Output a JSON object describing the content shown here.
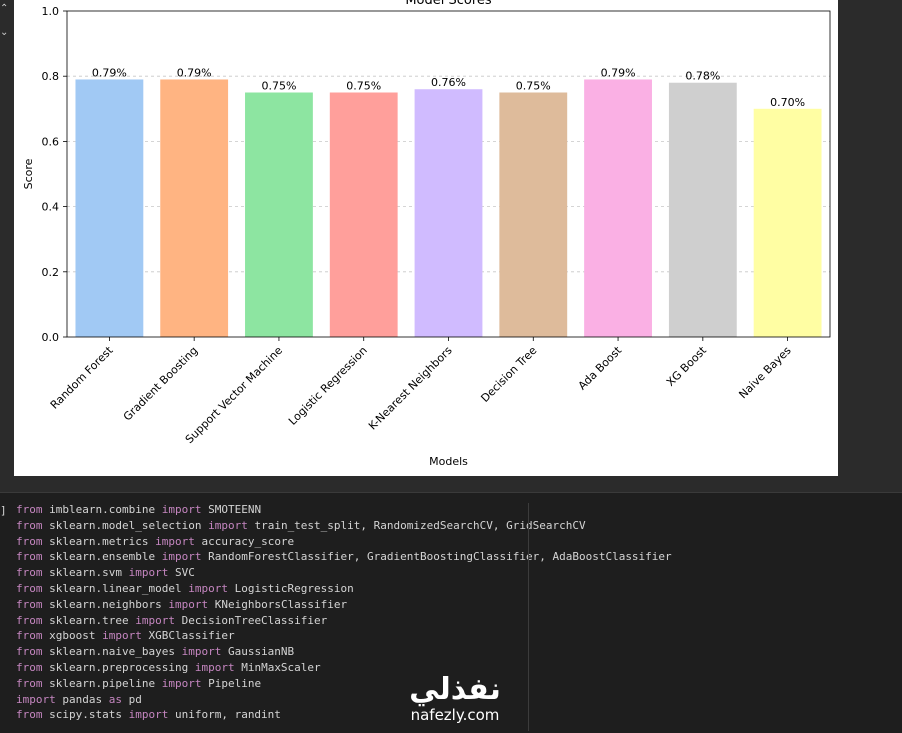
{
  "chart_data": {
    "type": "bar",
    "title": "Model Scores",
    "xlabel": "Models",
    "ylabel": "Score",
    "ylim": [
      0,
      1.0
    ],
    "yticks": [
      "0.0",
      "0.2",
      "0.4",
      "0.6",
      "0.8",
      "1.0"
    ],
    "grid": "y-dashed",
    "categories": [
      "Random Forest",
      "Gradient Boosting",
      "Support Vector Machine",
      "Logistic Regression",
      "K-Nearest Neighbors",
      "Decision Tree",
      "Ada Boost",
      "XG Boost",
      "Naive Bayes"
    ],
    "values": [
      0.79,
      0.79,
      0.75,
      0.75,
      0.76,
      0.75,
      0.79,
      0.78,
      0.7
    ],
    "value_labels": [
      "0.79%",
      "0.79%",
      "0.75%",
      "0.75%",
      "0.76%",
      "0.75%",
      "0.79%",
      "0.78%",
      "0.70%"
    ],
    "colors": [
      "#a1c9f4",
      "#ffb482",
      "#8de5a1",
      "#ff9f9b",
      "#d0bbff",
      "#debb9b",
      "#fab0e4",
      "#cfcfcf",
      "#fffea3"
    ]
  },
  "cell": {
    "execution_marker": "]",
    "code_lines": [
      [
        [
          "kw",
          "from"
        ],
        [
          "tx",
          " imblearn.combine "
        ],
        [
          "kw",
          "import"
        ],
        [
          "tx",
          " SMOTEENN"
        ]
      ],
      [
        [
          "kw",
          "from"
        ],
        [
          "tx",
          " sklearn.model_selection "
        ],
        [
          "kw",
          "import"
        ],
        [
          "tx",
          " train_test_split, RandomizedSearchCV, GridSearchCV"
        ]
      ],
      [
        [
          "kw",
          "from"
        ],
        [
          "tx",
          " sklearn.metrics "
        ],
        [
          "kw",
          "import"
        ],
        [
          "tx",
          " accuracy_score"
        ]
      ],
      [
        [
          "kw",
          "from"
        ],
        [
          "tx",
          " sklearn.ensemble "
        ],
        [
          "kw",
          "import"
        ],
        [
          "tx",
          " RandomForestClassifier, GradientBoostingClassifier, AdaBoostClassifier"
        ]
      ],
      [
        [
          "kw",
          "from"
        ],
        [
          "tx",
          " sklearn.svm "
        ],
        [
          "kw",
          "import"
        ],
        [
          "tx",
          " SVC"
        ]
      ],
      [
        [
          "kw",
          "from"
        ],
        [
          "tx",
          " sklearn.linear_model "
        ],
        [
          "kw",
          "import"
        ],
        [
          "tx",
          " LogisticRegression"
        ]
      ],
      [
        [
          "kw",
          "from"
        ],
        [
          "tx",
          " sklearn.neighbors "
        ],
        [
          "kw",
          "import"
        ],
        [
          "tx",
          " KNeighborsClassifier"
        ]
      ],
      [
        [
          "kw",
          "from"
        ],
        [
          "tx",
          " sklearn.tree "
        ],
        [
          "kw",
          "import"
        ],
        [
          "tx",
          " DecisionTreeClassifier"
        ]
      ],
      [
        [
          "kw",
          "from"
        ],
        [
          "tx",
          " xgboost "
        ],
        [
          "kw",
          "import"
        ],
        [
          "tx",
          " XGBClassifier"
        ]
      ],
      [
        [
          "kw",
          "from"
        ],
        [
          "tx",
          " sklearn.naive_bayes "
        ],
        [
          "kw",
          "import"
        ],
        [
          "tx",
          " GaussianNB"
        ]
      ],
      [
        [
          "kw",
          "from"
        ],
        [
          "tx",
          " sklearn.preprocessing "
        ],
        [
          "kw",
          "import"
        ],
        [
          "tx",
          " MinMaxScaler"
        ]
      ],
      [
        [
          "kw",
          "from"
        ],
        [
          "tx",
          " sklearn.pipeline "
        ],
        [
          "kw",
          "import"
        ],
        [
          "tx",
          " Pipeline"
        ]
      ],
      [
        [
          "kw",
          "import"
        ],
        [
          "tx",
          " pandas "
        ],
        [
          "kw",
          "as"
        ],
        [
          "tx",
          " pd"
        ]
      ],
      [
        [
          "kw",
          "from"
        ],
        [
          "tx",
          " scipy.stats "
        ],
        [
          "kw",
          "import"
        ],
        [
          "tx",
          " uniform, randint"
        ]
      ]
    ]
  },
  "watermark": {
    "arabic": "نفذلي",
    "latin": "nafezly.com"
  }
}
